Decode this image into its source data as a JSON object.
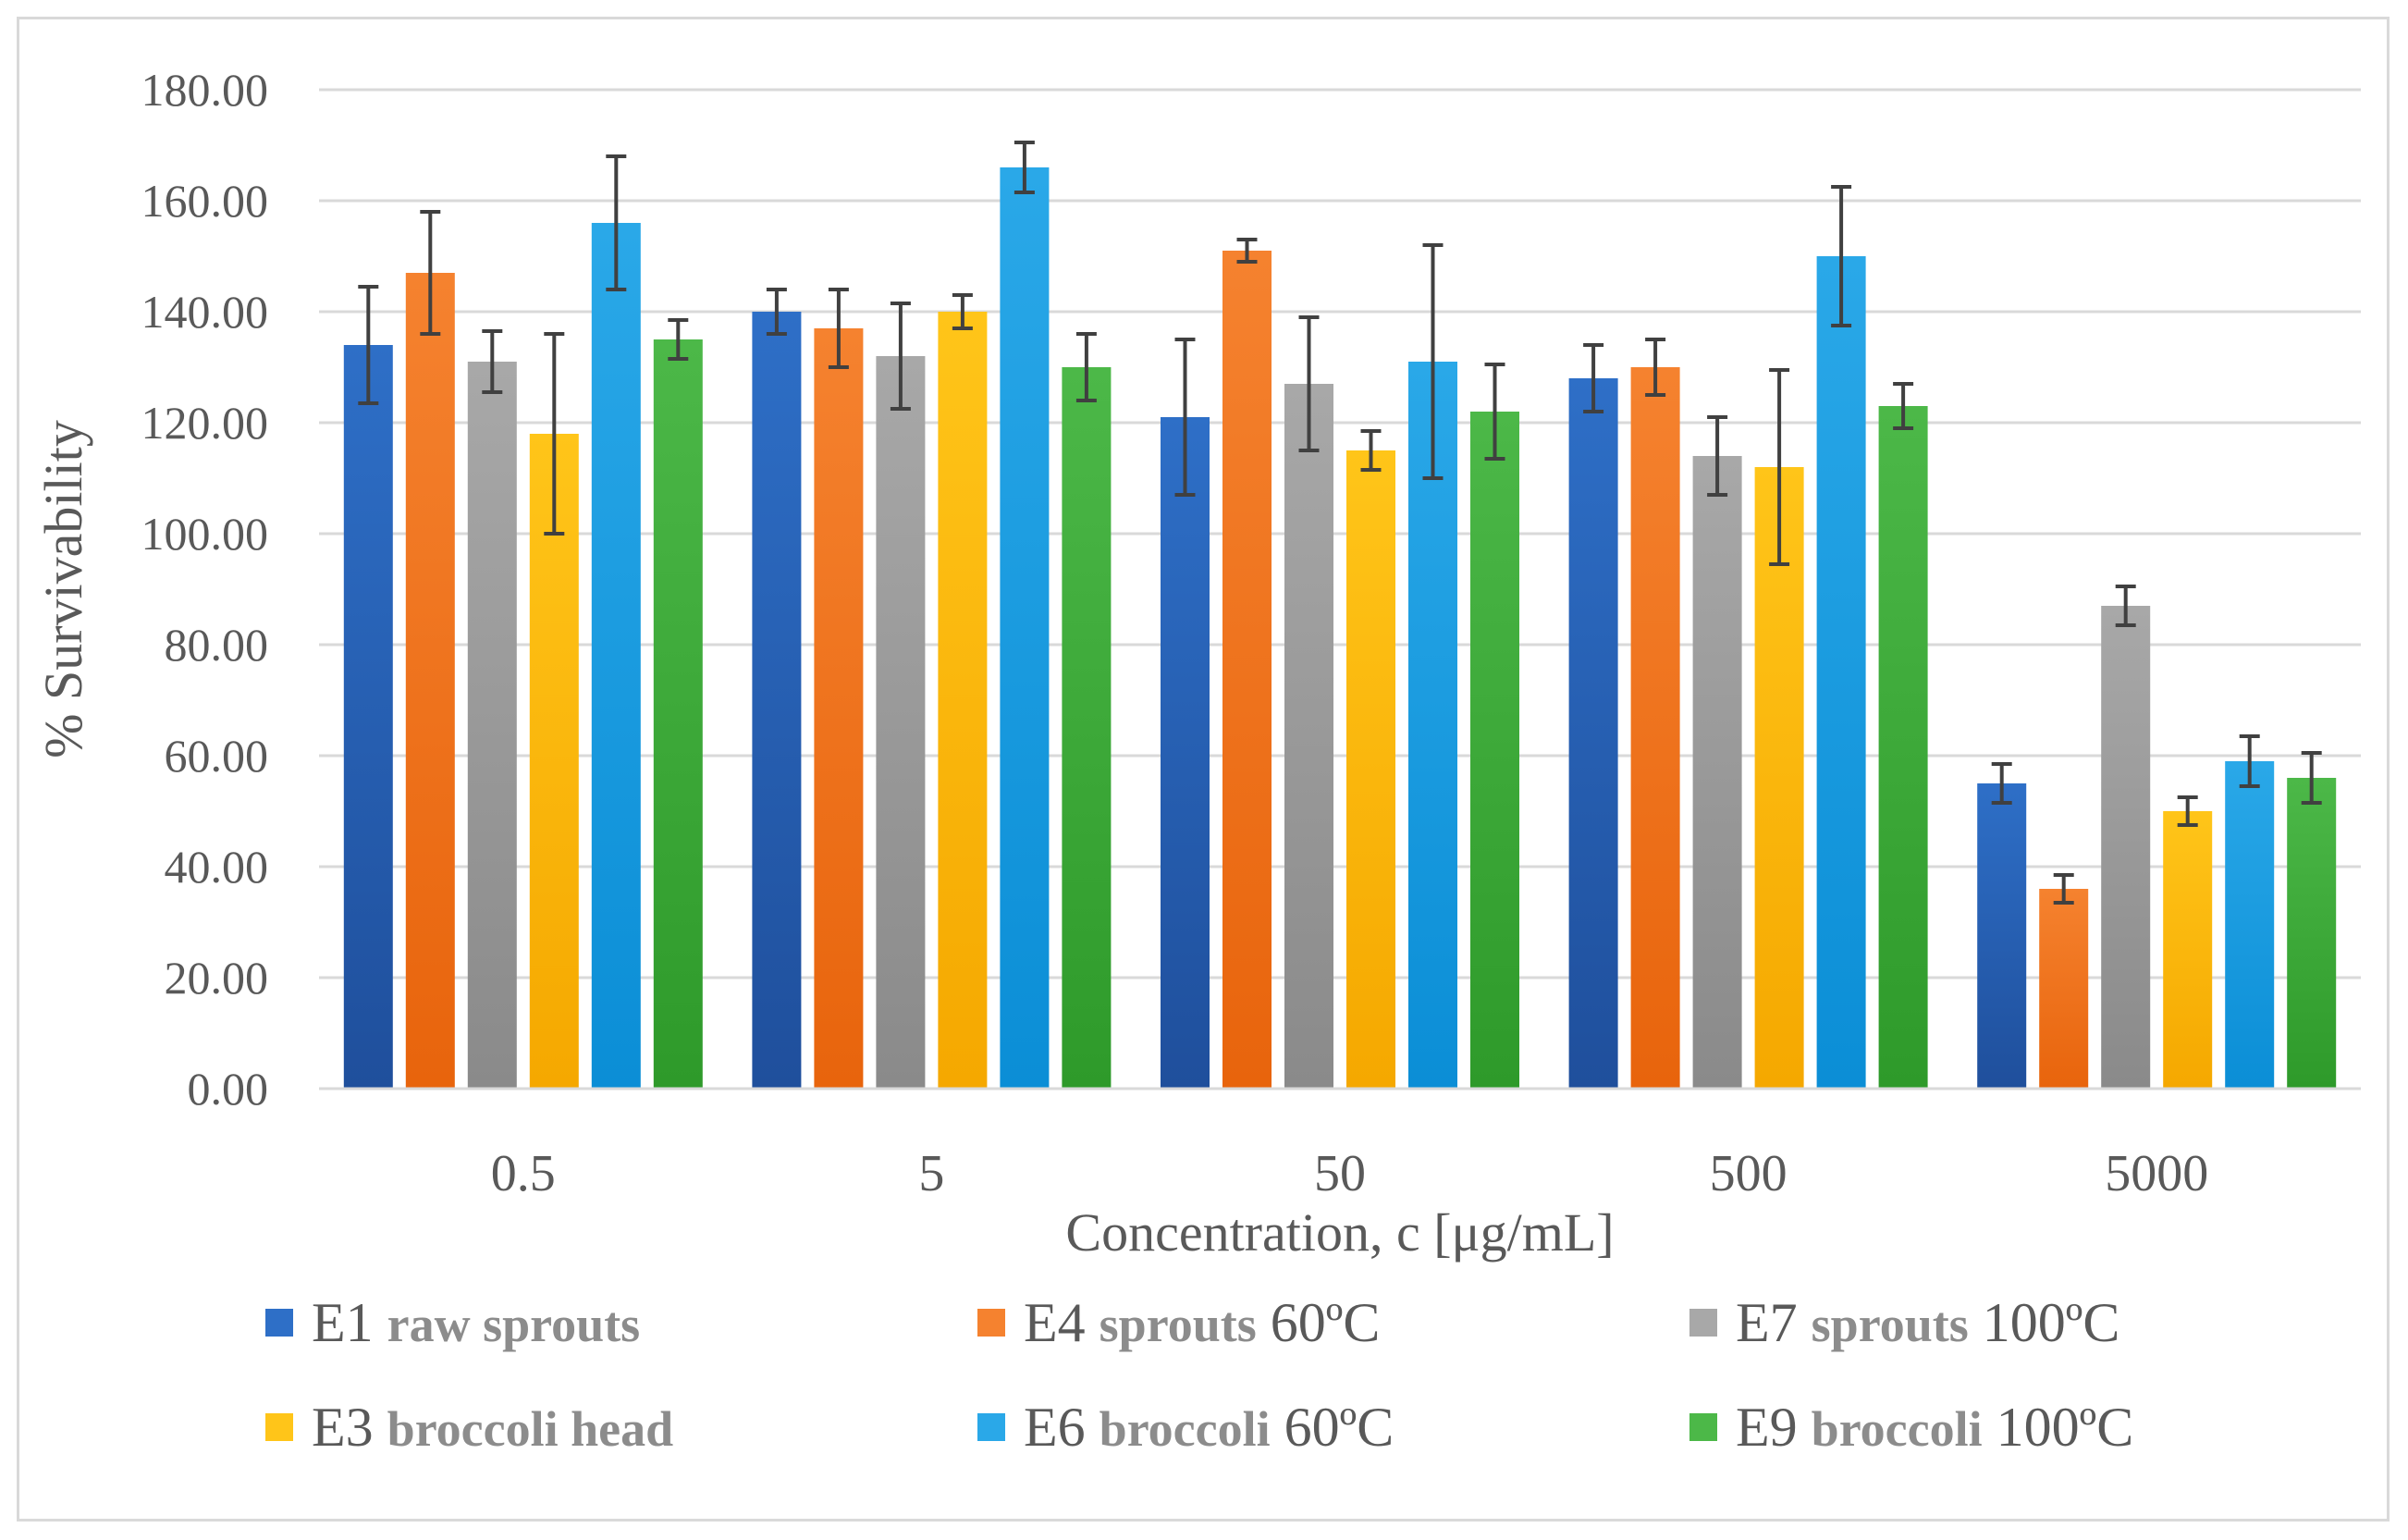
{
  "chart_data": {
    "type": "bar",
    "title": "",
    "xlabel": "Concentration, c [μg/mL]",
    "ylabel": "% Survivability",
    "ylim": [
      0,
      180
    ],
    "yticks": [
      "0.00",
      "20.00",
      "40.00",
      "60.00",
      "80.00",
      "100.00",
      "120.00",
      "140.00",
      "160.00",
      "180.00"
    ],
    "grid": true,
    "legend_position": "bottom",
    "categories": [
      "0.5",
      "5",
      "50",
      "500",
      "5000"
    ],
    "series": [
      {
        "name": "E1 raw sprouts",
        "code": "E1",
        "desc": "raw sprouts",
        "temp": "",
        "color": "#2e6fc7",
        "dark": "#1f4f9c",
        "values": [
          134,
          140,
          121,
          128,
          55
        ],
        "errors": [
          10.5,
          4,
          14,
          6,
          3.5
        ]
      },
      {
        "name": "E4 sprouts 60ºC",
        "code": "E4",
        "desc": "sprouts",
        "temp": "60ºC",
        "color": "#f5822f",
        "dark": "#e8640c",
        "values": [
          147,
          137,
          151,
          130,
          36
        ],
        "errors": [
          11,
          7,
          2,
          5,
          2.5
        ]
      },
      {
        "name": "E7 sprouts 100ºC",
        "code": "E7",
        "desc": "sprouts",
        "temp": "100ºC",
        "color": "#a8a8a8",
        "dark": "#8a8a8a",
        "values": [
          131,
          132,
          127,
          114,
          87
        ],
        "errors": [
          5.5,
          9.5,
          12,
          7,
          3.5
        ]
      },
      {
        "name": "E3 broccoli head",
        "code": "E3",
        "desc": "broccoli head",
        "temp": "",
        "color": "#ffc519",
        "dark": "#f5a800",
        "values": [
          118,
          140,
          115,
          112,
          50
        ],
        "errors": [
          18,
          3,
          3.5,
          17.5,
          2.5
        ]
      },
      {
        "name": "E6 broccoli 60ºC",
        "code": "E6",
        "desc": "broccoli",
        "temp": "60ºC",
        "color": "#2aa8e8",
        "dark": "#0b8ed6",
        "values": [
          156,
          166,
          131,
          150,
          59
        ],
        "errors": [
          12,
          4.5,
          21,
          12.5,
          4.5
        ]
      },
      {
        "name": "E9 broccoli 100ºC",
        "code": "E9",
        "desc": "broccoli",
        "temp": "100ºC",
        "color": "#4cb848",
        "dark": "#2e9a2a",
        "values": [
          135,
          130,
          122,
          123,
          56
        ],
        "errors": [
          3.5,
          6,
          8.5,
          4,
          4.5
        ]
      }
    ]
  }
}
